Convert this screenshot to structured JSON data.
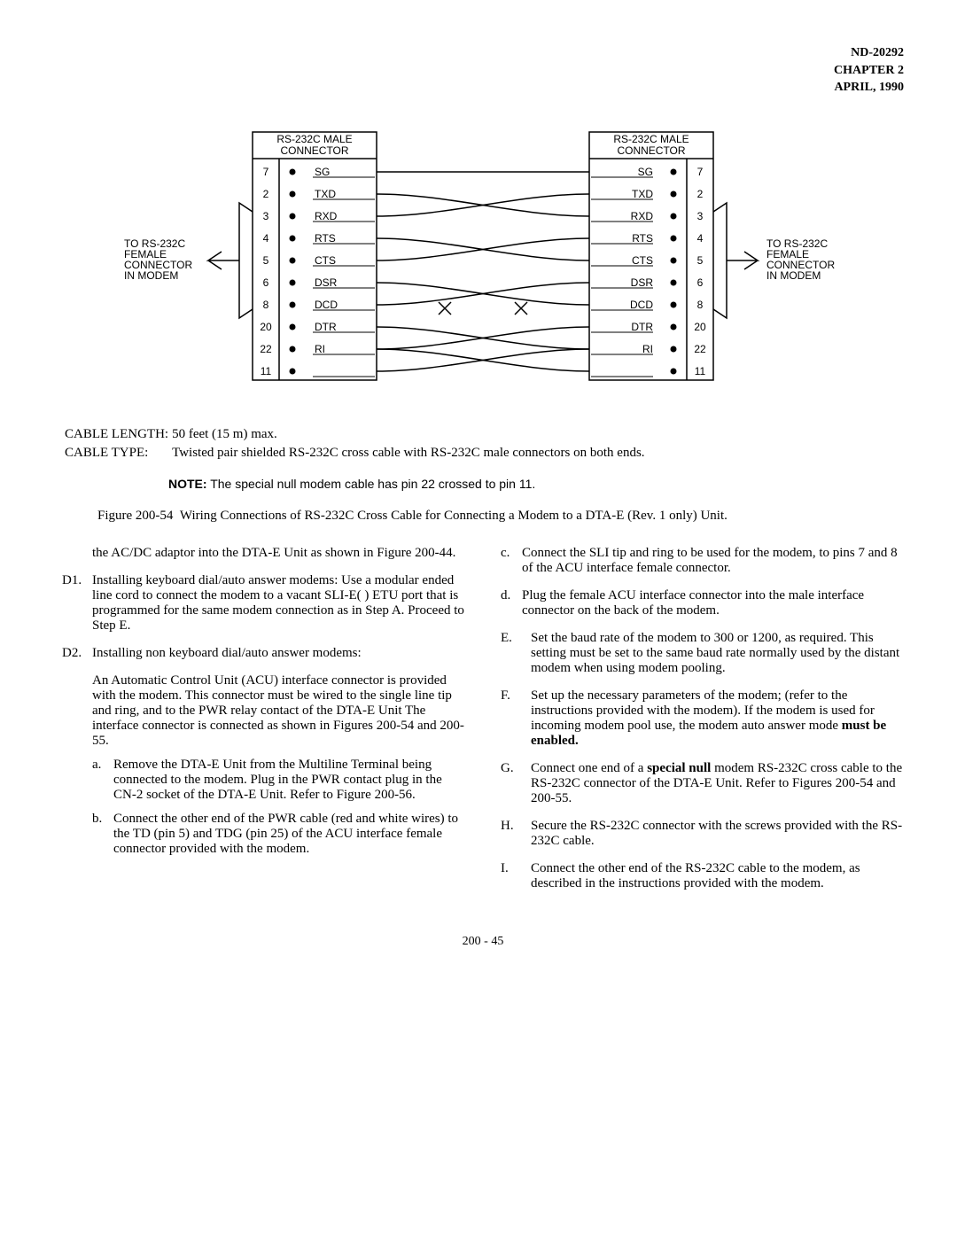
{
  "header": {
    "doc_id": "ND-20292",
    "chapter": "CHAPTER 2",
    "date": "APRIL, 1990"
  },
  "diagram": {
    "left_box_title": "RS-232C MALE CONNECTOR",
    "right_box_title": "RS-232C MALE CONNECTOR",
    "left_arrow_text1": "TO RS-232C FEMALE",
    "left_arrow_text2": "CONNECTOR IN MODEM",
    "right_arrow_text1": "TO RS-232C FEMALE",
    "right_arrow_text2": "CONNECTOR IN MODEM",
    "pins": [
      {
        "num_l": "7",
        "sig": "SG",
        "num_r": "7",
        "cross": false
      },
      {
        "num_l": "2",
        "sig": "TXD",
        "num_r": "2",
        "cross": true
      },
      {
        "num_l": "3",
        "sig": "RXD",
        "num_r": "3",
        "cross": true
      },
      {
        "num_l": "4",
        "sig": "RTS",
        "num_r": "4",
        "cross": true
      },
      {
        "num_l": "5",
        "sig": "CTS",
        "num_r": "5",
        "cross": true
      },
      {
        "num_l": "6",
        "sig": "DSR",
        "num_r": "6",
        "cross": true
      },
      {
        "num_l": "8",
        "sig": "DCD",
        "num_r": "8",
        "cross": true
      },
      {
        "num_l": "20",
        "sig": "DTR",
        "num_r": "20",
        "cross": true
      },
      {
        "num_l": "22",
        "sig": "RI",
        "num_r": "22",
        "cross": true
      },
      {
        "num_l": "11",
        "sig": "",
        "num_r": "11",
        "cross": true
      }
    ],
    "cable_length_label": "CABLE LENGTH:",
    "cable_length_val": "50 feet (15 m) max.",
    "cable_type_label": "CABLE TYPE:",
    "cable_type_val": "Twisted pair shielded RS-232C cross cable with RS-232C male connectors on both ends.",
    "note_label": "NOTE:",
    "note_text": "The special null modem cable has pin 22 crossed to pin 11."
  },
  "figure_title_prefix": "Figure 200-54",
  "figure_title": "Wiring Connections of RS-232C Cross Cable  for Connecting a Modem to a DTA-E (Rev. 1 only) Unit.",
  "left_col": {
    "intro_frag": "the AC/DC adaptor into the DTA-E Unit as shown in Figure 200-44.",
    "d1_label": "D1.",
    "d1_text": "Installing keyboard dial/auto answer modems: Use a modular ended line cord to connect the modem to a vacant SLI-E( ) ETU port that is programmed for the same modem connection as in Step A.  Proceed to Step E.",
    "d2_label": "D2.",
    "d2_text": "Installing non keyboard dial/auto answer modems:",
    "d2_para": "An Automatic Control Unit (ACU) interface connector is provided with the modem.  This connector must be wired to the single line tip and ring, and to the PWR relay contact of the DTA-E Unit  The interface connector is connected as shown in Figures 200-54 and 200-55.",
    "a_label": "a.",
    "a_text": "Remove the DTA-E Unit from the Multiline Terminal being connected to the modem. Plug in  the PWR contact plug in the CN-2 socket of the DTA-E Unit.  Refer to Figure 200-56.",
    "b_label": "b.",
    "b_text": "Connect the other end of the PWR cable (red and white wires) to the TD (pin 5) and TDG (pin 25) of the ACU interface female connector provided with the modem."
  },
  "right_col": {
    "c_label": "c.",
    "c_text": "Connect the SLI tip and ring to be used for the modem, to pins 7 and 8 of the ACU interface female connector.",
    "d_label": "d.",
    "d_text": "Plug the female ACU interface connector into the male interface connector on the back of the modem.",
    "e_label": "E.",
    "e_text": "Set the baud rate of the modem to 300 or 1200, as required.  This setting must be set to the same baud rate normally used by the distant modem when using modem pooling.",
    "f_label": "F.",
    "f_text_pre": "Set up the necessary parameters of the modem; (refer to the instructions provided with the modem).  If the modem is used for incoming modem pool use, the modem auto answer mode ",
    "f_text_bold": "must be enabled.",
    "g_label": "G.",
    "g_text_pre": "Connect one end of a ",
    "g_text_bold": "special null",
    "g_text_post": " modem RS-232C cross cable to the RS-232C connector of the DTA-E Unit.  Refer to Figures 200-54 and 200-55.",
    "h_label": "H.",
    "h_text": "Secure the RS-232C connector with the screws provided with the RS-232C cable.",
    "i_label": "I.",
    "i_text": "Connect the other end of the RS-232C cable to the modem, as described in the instructions provided with the modem."
  },
  "footer": "200 - 45"
}
